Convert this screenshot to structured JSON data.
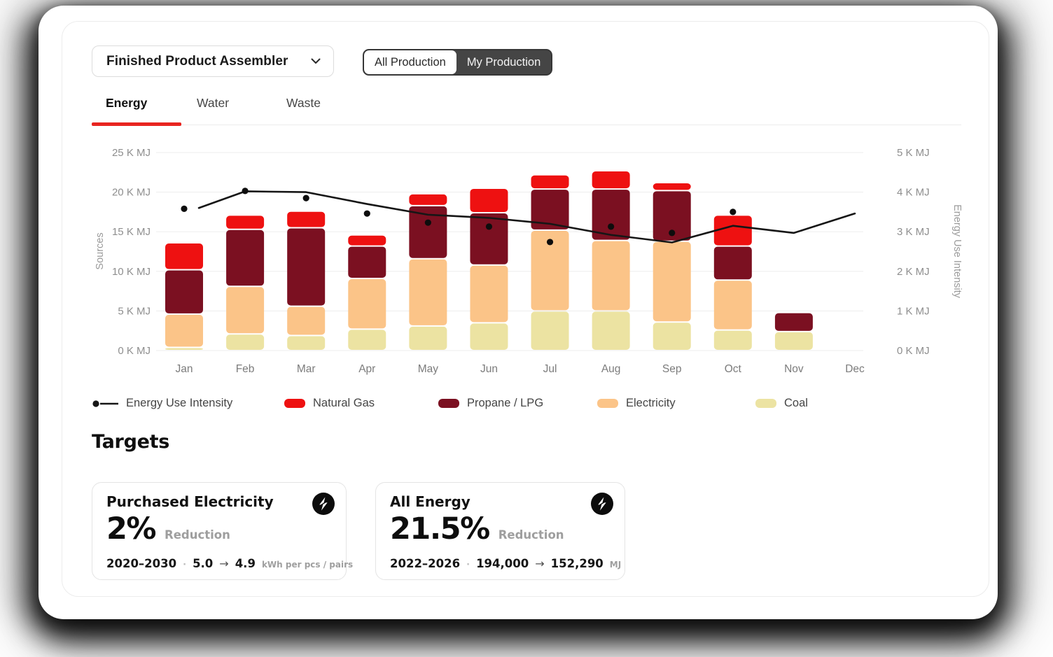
{
  "header": {
    "dropdown_label": "Finished Product Assembler"
  },
  "toggle": {
    "options": [
      "All Production",
      "My Production"
    ],
    "selected": "All Production"
  },
  "tabs": {
    "items": [
      "Energy",
      "Water",
      "Waste"
    ],
    "active": "Energy"
  },
  "colors": {
    "accent_red": "#e82420",
    "natural_gas": "#ee1111",
    "propane_lpg": "#7b1021",
    "electricity": "#fbc488",
    "coal": "#ece3a2",
    "line_black": "#161616",
    "toggle_dark": "#454545"
  },
  "chart_data": {
    "type": "stacked-bar+line",
    "categories": [
      "Jan",
      "Feb",
      "Mar",
      "Apr",
      "May",
      "Jun",
      "Jul",
      "Aug",
      "Sep",
      "Oct",
      "Nov",
      "Dec"
    ],
    "series": [
      {
        "name": "Coal",
        "color": "#ece3a2",
        "values": [
          0.4,
          2.1,
          1.9,
          2.7,
          3.1,
          3.5,
          5.0,
          5.0,
          3.6,
          2.6,
          2.4,
          0
        ]
      },
      {
        "name": "Electricity",
        "color": "#fbc488",
        "values": [
          4.2,
          6.0,
          3.7,
          6.4,
          8.5,
          7.3,
          10.2,
          8.9,
          10.2,
          6.3,
          0,
          0
        ]
      },
      {
        "name": "Propane / LPG",
        "color": "#7b1021",
        "values": [
          5.6,
          7.2,
          9.9,
          4.1,
          6.7,
          6.6,
          5.2,
          6.5,
          6.4,
          4.3,
          2.4,
          0
        ]
      },
      {
        "name": "Natural Gas",
        "color": "#ee1111",
        "values": [
          3.4,
          1.8,
          2.1,
          1.4,
          1.5,
          3.1,
          1.8,
          2.3,
          1.0,
          3.9,
          0,
          0
        ]
      }
    ],
    "line_series": {
      "name": "Energy Use Intensity",
      "axis": "right",
      "color": "#161616",
      "values": [
        3.6,
        4.02,
        4.0,
        3.7,
        3.43,
        3.35,
        3.2,
        2.92,
        2.73,
        3.15,
        2.97,
        3.46
      ]
    },
    "point_series": {
      "name": "Energy Use Intensity",
      "axis": "right",
      "color": "#0d0d0d",
      "values": [
        3.58,
        4.03,
        3.85,
        3.46,
        3.23,
        3.13,
        2.74,
        3.13,
        2.97,
        3.5,
        null,
        null
      ]
    },
    "left_axis": {
      "title": "Sources",
      "range": [
        0,
        25
      ],
      "ticks": [
        "0 K MJ",
        "5 K MJ",
        "10 K MJ",
        "15 K MJ",
        "20 K MJ",
        "25 K MJ"
      ]
    },
    "right_axis": {
      "title": "Energy Use Intensity",
      "range": [
        0,
        5
      ],
      "ticks": [
        "0 K MJ",
        "1 K MJ",
        "2 K MJ",
        "3 K MJ",
        "4 K MJ",
        "5 K MJ"
      ]
    },
    "grid": "horizontal",
    "legend_position": "bottom"
  },
  "legend": {
    "items": [
      {
        "label": "Energy Use Intensity",
        "marker": "line-dot",
        "color": "#161616",
        "x": 0
      },
      {
        "label": "Natural Gas",
        "marker": "swatch",
        "color": "#ee1111",
        "x": 275
      },
      {
        "label": "Propane / LPG",
        "marker": "swatch",
        "color": "#7b1021",
        "x": 495
      },
      {
        "label": "Electricity",
        "marker": "swatch",
        "color": "#fbc488",
        "x": 722
      },
      {
        "label": "Coal",
        "marker": "swatch",
        "color": "#ece3a2",
        "x": 948
      }
    ]
  },
  "targets": {
    "heading": "Targets",
    "separator": "·",
    "arrow": "→",
    "cards": [
      {
        "title": "Purchased Electricity",
        "percent": "2%",
        "sub": "Reduction",
        "period": "2020–2030",
        "from": "5.0",
        "to": "4.9",
        "unit": "kWh per pcs / pairs"
      },
      {
        "title": "All Energy",
        "percent": "21.5%",
        "sub": "Reduction",
        "period": "2022–2026",
        "from": "194,000",
        "to": "152,290",
        "unit": "MJ"
      }
    ]
  }
}
